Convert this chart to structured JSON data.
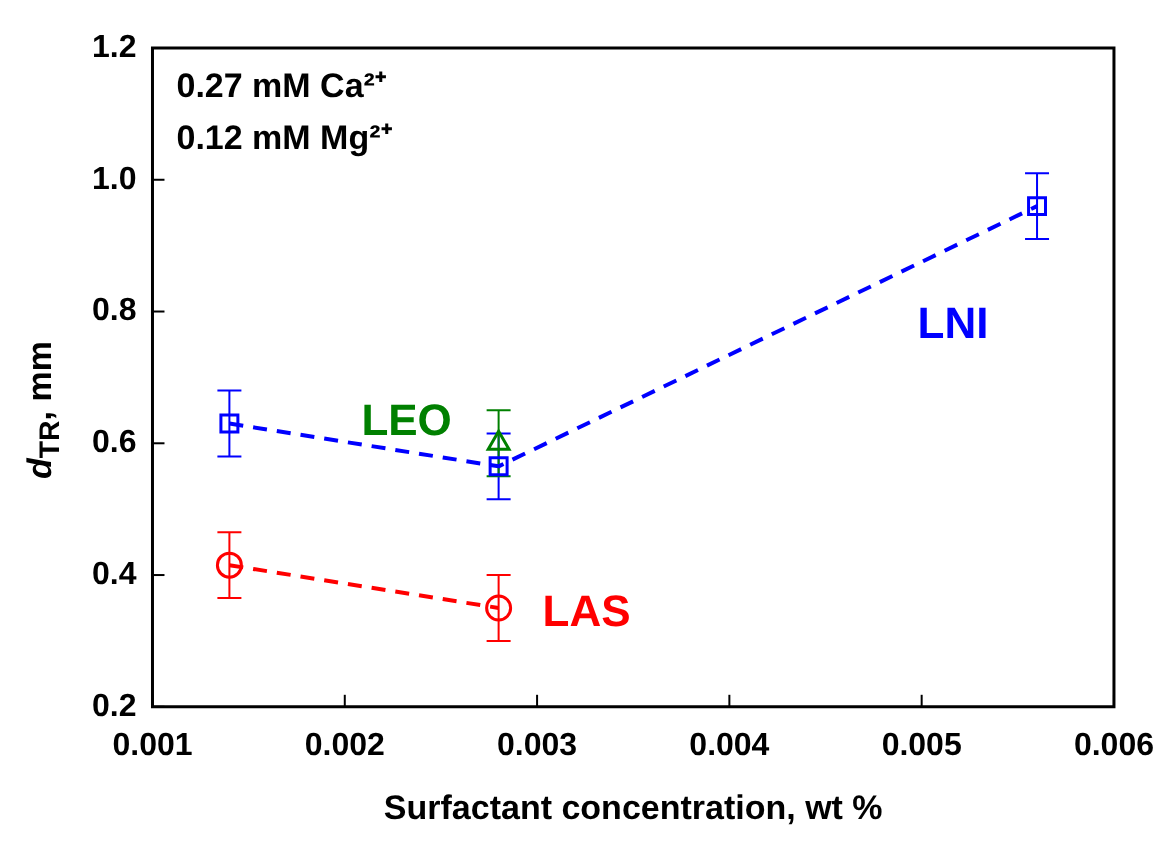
{
  "chart_data": {
    "type": "line",
    "xlabel": "Surfactant concentration, wt %",
    "ylabel": "d$_{TR}$, mm",
    "annotations": [
      "0.27 mM Ca²⁺",
      "0.12 mM Mg²⁺"
    ],
    "xlim": [
      0.001,
      0.006
    ],
    "xticks": [
      0.001,
      0.002,
      0.003,
      0.004,
      0.005,
      0.006
    ],
    "ylim": [
      0.2,
      1.2
    ],
    "yticks": [
      0.2,
      0.4,
      0.6,
      0.8,
      {
        "value": 1,
        "label": "1.0"
      },
      1.2
    ],
    "grid": false,
    "legend": false,
    "series": [
      {
        "name": "LNI",
        "type": "line",
        "color": "#0000ff",
        "marker": "square",
        "line_style": "dashed",
        "x": [
          0.0014,
          0.0028,
          0.0056
        ],
        "values": [
          0.63,
          0.565,
          0.96
        ],
        "errors": [
          0.05,
          0.05,
          0.05
        ]
      },
      {
        "name": "LEO",
        "type": "scatter",
        "color": "#008000",
        "marker": "triangle",
        "x": [
          0.0028
        ],
        "values": [
          0.6
        ],
        "errors": [
          0.05
        ]
      },
      {
        "name": "LAS",
        "type": "line",
        "color": "#ff0000",
        "marker": "circle",
        "line_style": "dashed",
        "x": [
          0.0014,
          0.0028
        ],
        "values": [
          0.415,
          0.35
        ],
        "errors": [
          0.05,
          0.05
        ]
      }
    ]
  }
}
